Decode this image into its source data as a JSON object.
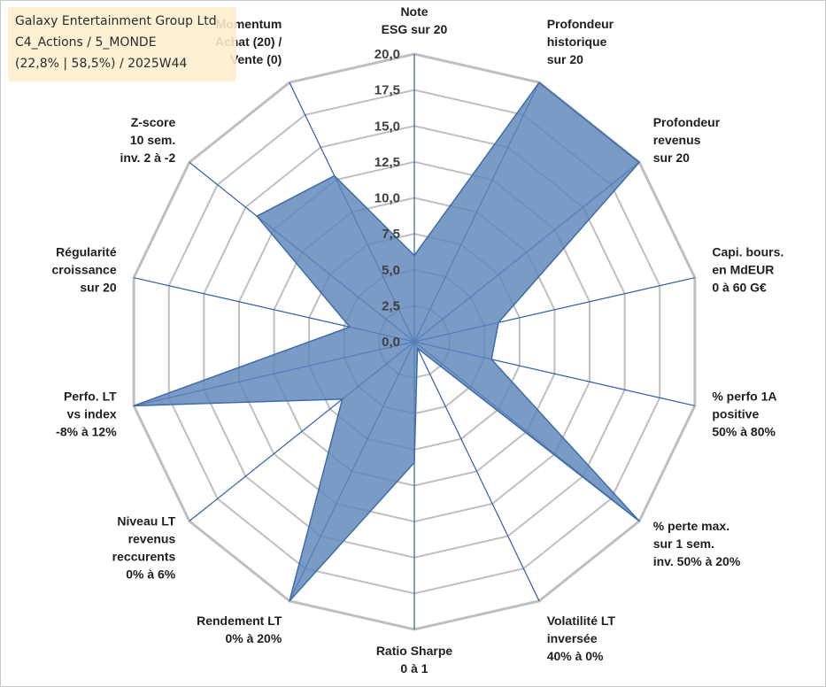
{
  "info_box": {
    "company": "Galaxy Entertainment Group Ltd",
    "portfolio": "C4_Actions / 5_MONDE",
    "period": "(22,8% | 58,5%) / 2025W44"
  },
  "colors": {
    "fill": "#5B85B9",
    "edge": "#3F6CA8",
    "spoke": "#2E5FAA",
    "grid": "#BFBFBF"
  },
  "chart_data": {
    "type": "radar",
    "title": "Galaxy Entertainment Group Ltd",
    "rmin": 0,
    "rmax": 20,
    "ticks": [
      "0,0",
      "2,5",
      "5,0",
      "7,5",
      "10,0",
      "12,5",
      "15,0",
      "17,5",
      "20,0"
    ],
    "axes": [
      {
        "label": [
          "Note",
          "ESG sur 20"
        ],
        "value": 6.0
      },
      {
        "label": [
          "Profondeur",
          "historique",
          "sur 20"
        ],
        "value": 20.0
      },
      {
        "label": [
          "Profondeur",
          "revenus",
          "sur 20"
        ],
        "value": 20.0
      },
      {
        "label": [
          "Capi. bours.",
          "en MdEUR",
          "0 à 60 G€"
        ],
        "value": 6.0
      },
      {
        "label": [
          "% perfo 1A",
          "positive",
          "50% à 80%"
        ],
        "value": 5.5
      },
      {
        "label": [
          "% perte max.",
          "sur 1 sem.",
          "inv. 50% à 20%"
        ],
        "value": 20.0
      },
      {
        "label": [
          "Volatilité LT",
          "inversée",
          "40% à 0%"
        ],
        "value": 0.5
      },
      {
        "label": [
          "Ratio Sharpe",
          "0 à 1"
        ],
        "value": 8.4
      },
      {
        "label": [
          "Rendement LT",
          "0% à 20%"
        ],
        "value": 20.0
      },
      {
        "label": [
          "Niveau LT",
          "revenus",
          "reccurents",
          "0% à 6%"
        ],
        "value": 6.4
      },
      {
        "label": [
          "Perfo. LT",
          "vs index",
          "-8% à 12%"
        ],
        "value": 20.0
      },
      {
        "label": [
          "Régularité",
          "croissance",
          "sur 20"
        ],
        "value": 4.6
      },
      {
        "label": [
          "Z-score",
          "10 sem.",
          "inv. 2 à -2"
        ],
        "value": 14.0
      },
      {
        "label": [
          "Momentum",
          "Achat (20) /",
          "Vente (0)"
        ],
        "value": 12.8
      }
    ]
  }
}
